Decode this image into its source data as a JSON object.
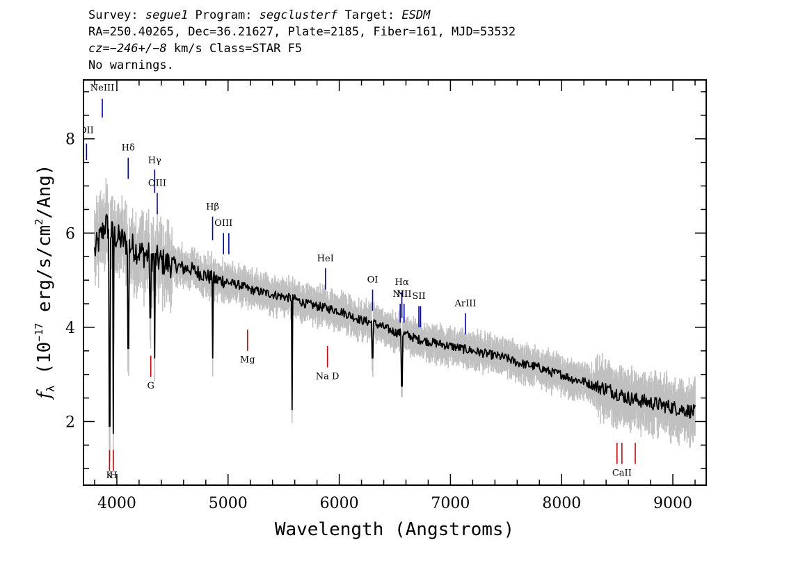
{
  "header": {
    "line1": {
      "survey_key": "Survey: ",
      "survey": "segue1",
      "program_key": " Program: ",
      "program": "segclusterf",
      "target_key": " Target: ",
      "target": "ESDM"
    },
    "line2": "RA=250.40265, Dec=36.21627, Plate=2185, Fiber=161, MJD=53532",
    "line3": {
      "cz": "cz=−246+/−8",
      "rest": " km/s Class=STAR F5"
    },
    "line4": "No warnings."
  },
  "chart_data": {
    "type": "line",
    "xlabel": "Wavelength (Angstroms)",
    "ylabel": "f_λ (10^-17 erg/s/cm^2/Ang)",
    "xlim": [
      3700,
      9300
    ],
    "ylim": [
      0.65,
      9.25
    ],
    "x_ticks": [
      4000,
      5000,
      6000,
      7000,
      8000,
      9000
    ],
    "y_ticks": [
      2,
      4,
      6,
      8
    ],
    "grid": false,
    "colors": {
      "flux": "#000000",
      "error": "#c0c0c0",
      "emission": "#0000cc",
      "absorption": "#dd0000"
    },
    "series": [
      {
        "x": [
          3800,
          3850,
          3900,
          3950,
          4000,
          4050,
          4100,
          4150,
          4200,
          4250,
          4300,
          4350,
          4400,
          4450,
          4500,
          4550,
          4600,
          4650,
          4700,
          4750,
          4800,
          4850,
          4900,
          4950,
          5000,
          5100,
          5200,
          5300,
          5400,
          5500,
          5600,
          5700,
          5800,
          5900,
          6000,
          6100,
          6200,
          6300,
          6400,
          6500,
          6600,
          6700,
          6800,
          6900,
          7000,
          7100,
          7200,
          7300,
          7400,
          7500,
          7600,
          7700,
          7800,
          7900,
          8000,
          8100,
          8200,
          8300,
          8400,
          8500,
          8600,
          8700,
          8800,
          8900,
          9000,
          9100,
          9200
        ],
        "values": [
          5.6,
          5.9,
          6.2,
          6.0,
          5.9,
          5.85,
          5.75,
          5.7,
          5.6,
          5.55,
          5.5,
          5.45,
          5.4,
          5.35,
          5.35,
          5.3,
          5.25,
          5.25,
          5.2,
          5.15,
          5.1,
          5.05,
          5.0,
          5.0,
          4.95,
          4.9,
          4.8,
          4.75,
          4.7,
          4.65,
          4.6,
          4.5,
          4.45,
          4.4,
          4.35,
          4.25,
          4.15,
          4.1,
          4.0,
          3.9,
          3.85,
          3.75,
          3.7,
          3.65,
          3.6,
          3.55,
          3.5,
          3.45,
          3.4,
          3.35,
          3.25,
          3.2,
          3.15,
          3.05,
          3.0,
          2.9,
          2.85,
          2.75,
          2.7,
          2.6,
          2.5,
          2.45,
          2.4,
          2.35,
          2.3,
          2.25,
          2.2
        ]
      }
    ],
    "absorption_dips": [
      {
        "x": 3934,
        "y": 1.9
      },
      {
        "x": 3969,
        "y": 1.75
      },
      {
        "x": 4102,
        "y": 3.55
      },
      {
        "x": 4300,
        "y": 4.2
      },
      {
        "x": 4341,
        "y": 3.35
      },
      {
        "x": 4861,
        "y": 3.35
      },
      {
        "x": 5577,
        "y": 2.25
      },
      {
        "x": 6300,
        "y": 3.35
      },
      {
        "x": 6563,
        "y": 2.75
      }
    ],
    "lines": [
      {
        "label": "OII",
        "x": 3727,
        "type": "emission",
        "y_top": 7.9,
        "y_bot": 7.55,
        "label_y": 8.12
      },
      {
        "label": "NeIII",
        "x": 3869,
        "type": "emission",
        "y_top": 8.85,
        "y_bot": 8.45,
        "label_y": 9.02
      },
      {
        "label": "Hδ",
        "x": 4102,
        "type": "emission",
        "y_top": 7.6,
        "y_bot": 7.15,
        "label_y": 7.75
      },
      {
        "label": "Hγ",
        "x": 4340,
        "type": "emission",
        "y_top": 7.35,
        "y_bot": 6.85,
        "label_y": 7.48
      },
      {
        "label": "OIII",
        "x": 4363,
        "type": "emission",
        "y_top": 6.85,
        "y_bot": 6.4,
        "label_y": 7.0
      },
      {
        "label": "Hβ",
        "x": 4861,
        "type": "emission",
        "y_top": 6.35,
        "y_bot": 5.85,
        "label_y": 6.5
      },
      {
        "label": "OIII",
        "x": 4959,
        "type": "emission",
        "y_top": 6.0,
        "y_bot": 5.55,
        "label_y": 6.15
      },
      {
        "label": "",
        "x": 5007,
        "type": "emission",
        "y_top": 6.0,
        "y_bot": 5.55,
        "label_y": 6.15
      },
      {
        "label": "HeI",
        "x": 5876,
        "type": "emission",
        "y_top": 5.25,
        "y_bot": 4.8,
        "label_y": 5.4
      },
      {
        "label": "OI",
        "x": 6300,
        "type": "emission",
        "y_top": 4.8,
        "y_bot": 4.35,
        "label_y": 4.95
      },
      {
        "label": "NII",
        "x": 6548,
        "type": "emission",
        "y_top": 4.5,
        "y_bot": 4.1,
        "label_y": 4.65
      },
      {
        "label": "Hα",
        "x": 6563,
        "type": "emission",
        "y_top": 4.75,
        "y_bot": 4.2,
        "label_y": 4.9
      },
      {
        "label": "NII",
        "x": 6583,
        "type": "emission",
        "y_top": 4.5,
        "y_bot": 4.1,
        "label_y": 4.65
      },
      {
        "label": "SII",
        "x": 6716,
        "type": "emission",
        "y_top": 4.45,
        "y_bot": 4.0,
        "label_y": 4.6
      },
      {
        "label": "",
        "x": 6731,
        "type": "emission",
        "y_top": 4.45,
        "y_bot": 4.0,
        "label_y": 4.6
      },
      {
        "label": "ArIII",
        "x": 7135,
        "type": "emission",
        "y_top": 4.3,
        "y_bot": 3.85,
        "label_y": 4.45
      },
      {
        "label": "K",
        "x": 3934,
        "type": "absorption",
        "y_top": 1.4,
        "y_bot": 0.95,
        "label_y": 0.8
      },
      {
        "label": "H",
        "x": 3969,
        "type": "absorption",
        "y_top": 1.4,
        "y_bot": 0.95,
        "label_y": 0.8
      },
      {
        "label": "G",
        "x": 4305,
        "type": "absorption",
        "y_top": 3.4,
        "y_bot": 2.95,
        "label_y": 2.7
      },
      {
        "label": "Mg",
        "x": 5175,
        "type": "absorption",
        "y_top": 3.95,
        "y_bot": 3.5,
        "label_y": 3.25
      },
      {
        "label": "Na D",
        "x": 5894,
        "type": "absorption",
        "y_top": 3.6,
        "y_bot": 3.15,
        "label_y": 2.9
      },
      {
        "label": "",
        "x": 8498,
        "type": "absorption",
        "y_top": 1.55,
        "y_bot": 1.1,
        "label_y": 0.85
      },
      {
        "label": "CaII",
        "x": 8542,
        "type": "absorption",
        "y_top": 1.55,
        "y_bot": 1.1,
        "label_y": 0.85
      },
      {
        "label": "",
        "x": 8662,
        "type": "absorption",
        "y_top": 1.55,
        "y_bot": 1.1,
        "label_y": 0.85
      }
    ]
  }
}
